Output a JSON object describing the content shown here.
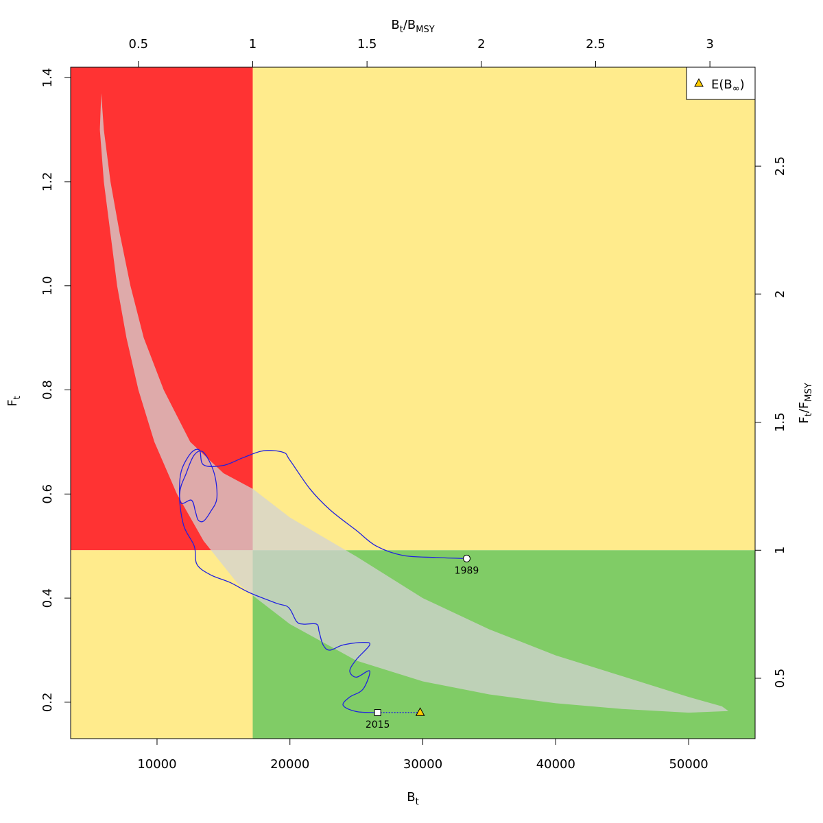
{
  "chart_data": {
    "type": "line",
    "title": "",
    "xlabel": "B",
    "xlabel_sub": "t",
    "ylabel": "F",
    "ylabel_sub": "t",
    "top_axis": {
      "label_main": "B",
      "label_sub": "t",
      "label_div": "/B",
      "label_sub2": "MSY",
      "ticks": [
        "0.5",
        "1",
        "1.5",
        "2",
        "2.5",
        "3"
      ],
      "tick_values": [
        0.5,
        1,
        1.5,
        2,
        2.5,
        3
      ]
    },
    "right_axis": {
      "label_main": "F",
      "label_sub": "t",
      "label_div": "/F",
      "label_sub2": "MSY",
      "ticks": [
        "0.5",
        "1",
        "1.5",
        "2",
        "2.5"
      ],
      "tick_values": [
        0.5,
        1,
        1.5,
        2,
        2.5
      ]
    },
    "x_ticks": [
      "10000",
      "20000",
      "30000",
      "40000",
      "50000"
    ],
    "x_tick_values": [
      10000,
      20000,
      30000,
      40000,
      50000
    ],
    "y_ticks": [
      "0.2",
      "0.4",
      "0.6",
      "0.8",
      "1.0",
      "1.2",
      "1.4"
    ],
    "y_tick_values": [
      0.2,
      0.4,
      0.6,
      0.8,
      1.0,
      1.2,
      1.4
    ],
    "xlim": [
      3500,
      55000
    ],
    "ylim": [
      0.13,
      1.42
    ],
    "Bmsy": 17200,
    "Fmsy": 0.492,
    "zone_colors": {
      "red": "#ff3333",
      "yellow": "#ffeb8c",
      "green": "#80cc66",
      "ellipse": "#d3d3d3",
      "trajectory": "#2020e0"
    },
    "confidence_region": {
      "upper": [
        [
          5800,
          1.37
        ],
        [
          6000,
          1.3
        ],
        [
          6500,
          1.2
        ],
        [
          7200,
          1.1
        ],
        [
          8000,
          1.0
        ],
        [
          9000,
          0.9
        ],
        [
          10500,
          0.8
        ],
        [
          12500,
          0.7
        ],
        [
          15000,
          0.64
        ],
        [
          17200,
          0.61
        ],
        [
          20000,
          0.555
        ],
        [
          25000,
          0.48
        ],
        [
          30000,
          0.4
        ],
        [
          35000,
          0.34
        ],
        [
          40000,
          0.29
        ],
        [
          45000,
          0.25
        ],
        [
          50000,
          0.21
        ],
        [
          52500,
          0.192
        ],
        [
          53000,
          0.183
        ]
      ],
      "lower": [
        [
          5800,
          1.37
        ],
        [
          5700,
          1.3
        ],
        [
          6000,
          1.2
        ],
        [
          6500,
          1.1
        ],
        [
          7000,
          1.0
        ],
        [
          7700,
          0.9
        ],
        [
          8600,
          0.8
        ],
        [
          9800,
          0.7
        ],
        [
          11500,
          0.6
        ],
        [
          13500,
          0.51
        ],
        [
          16000,
          0.43
        ],
        [
          17200,
          0.405
        ],
        [
          20000,
          0.35
        ],
        [
          25000,
          0.28
        ],
        [
          30000,
          0.24
        ],
        [
          35000,
          0.215
        ],
        [
          40000,
          0.198
        ],
        [
          45000,
          0.187
        ],
        [
          50000,
          0.18
        ],
        [
          53000,
          0.183
        ]
      ]
    },
    "series": [
      {
        "values": [
          [
            33300,
            0.476
          ],
          [
            31000,
            0.478
          ],
          [
            28500,
            0.482
          ],
          [
            26500,
            0.5
          ],
          [
            25000,
            0.53
          ],
          [
            23000,
            0.57
          ],
          [
            21500,
            0.61
          ],
          [
            20000,
            0.665
          ],
          [
            19500,
            0.68
          ],
          [
            18000,
            0.683
          ],
          [
            16500,
            0.67
          ],
          [
            15000,
            0.655
          ],
          [
            13500,
            0.656
          ],
          [
            13200,
            0.684
          ],
          [
            12600,
            0.68
          ],
          [
            11900,
            0.65
          ],
          [
            11700,
            0.62
          ],
          [
            11800,
            0.583
          ],
          [
            12600,
            0.588
          ],
          [
            12900,
            0.565
          ],
          [
            13100,
            0.55
          ],
          [
            13500,
            0.548
          ],
          [
            14000,
            0.565
          ],
          [
            14500,
            0.592
          ],
          [
            14300,
            0.64
          ],
          [
            13500,
            0.68
          ],
          [
            12800,
            0.675
          ],
          [
            12200,
            0.64
          ],
          [
            11700,
            0.6
          ],
          [
            12000,
            0.54
          ],
          [
            12800,
            0.5
          ],
          [
            13000,
            0.465
          ],
          [
            14000,
            0.445
          ],
          [
            15500,
            0.43
          ],
          [
            17000,
            0.41
          ],
          [
            19000,
            0.39
          ],
          [
            19900,
            0.382
          ],
          [
            20500,
            0.355
          ],
          [
            21000,
            0.35
          ],
          [
            22000,
            0.35
          ],
          [
            22200,
            0.335
          ],
          [
            22500,
            0.31
          ],
          [
            23000,
            0.3
          ],
          [
            24000,
            0.31
          ],
          [
            25500,
            0.315
          ],
          [
            26000,
            0.31
          ],
          [
            25000,
            0.282
          ],
          [
            24500,
            0.26
          ],
          [
            25000,
            0.248
          ],
          [
            26000,
            0.26
          ],
          [
            25500,
            0.225
          ],
          [
            24500,
            0.21
          ],
          [
            24000,
            0.194
          ],
          [
            25000,
            0.182
          ],
          [
            26600,
            0.18
          ]
        ]
      }
    ],
    "projection": {
      "from": [
        26600,
        0.18
      ],
      "to": [
        29800,
        0.18
      ]
    },
    "start_point": {
      "x": 33300,
      "y": 0.476,
      "label": "1989"
    },
    "end_point": {
      "x": 26600,
      "y": 0.18,
      "label": "2015"
    },
    "expected_point": {
      "x": 29800,
      "y": 0.181,
      "color": "#ffcc00"
    },
    "legend": {
      "position": "top-right",
      "entry_main": "E(B",
      "entry_sub": "∞",
      "entry_close": ")",
      "marker_color": "#ffcc00"
    }
  }
}
